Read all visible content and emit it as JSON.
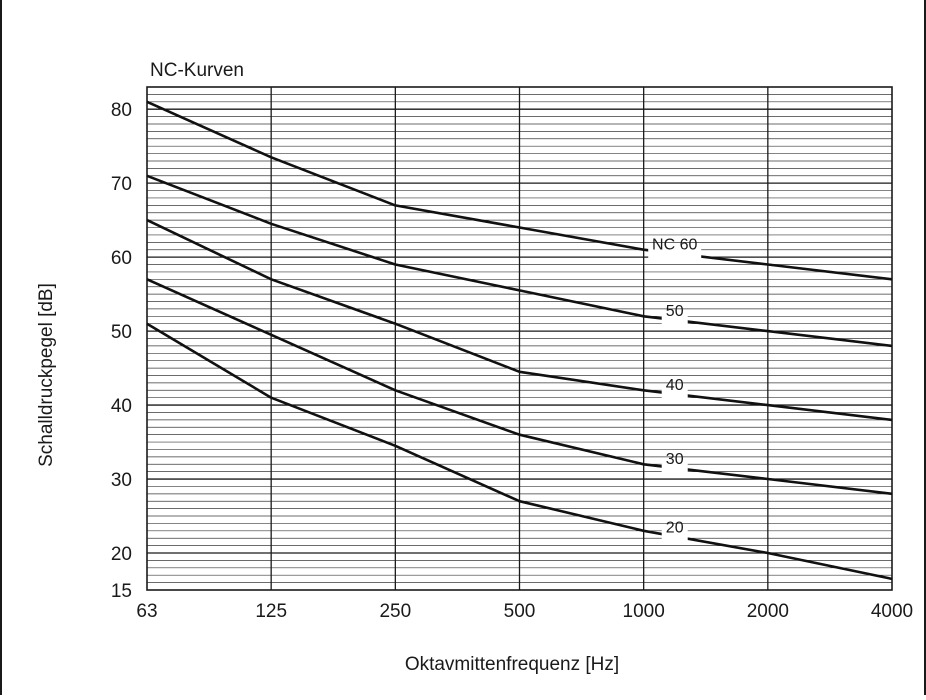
{
  "chart_data": {
    "type": "line",
    "title": "NC-Kurven",
    "xlabel": "Oktavmittenfrequenz [Hz]",
    "ylabel": "Schalldruckpegel [dB]",
    "x_scale": "log",
    "x_ticks": [
      "63",
      "125",
      "250",
      "500",
      "1000",
      "2000",
      "4000"
    ],
    "x": [
      63,
      125,
      250,
      500,
      1000,
      2000,
      4000
    ],
    "y_ticks": [
      "15",
      "20",
      "30",
      "40",
      "50",
      "60",
      "70",
      "80"
    ],
    "ylim": [
      15,
      83
    ],
    "grid": true,
    "series": [
      {
        "name": "NC 60",
        "values": [
          81,
          73.5,
          67,
          64,
          61,
          59,
          57
        ]
      },
      {
        "name": "50",
        "values": [
          71,
          64.5,
          59,
          55.5,
          52,
          50,
          48
        ]
      },
      {
        "name": "40",
        "values": [
          65,
          57,
          51,
          44.5,
          42,
          40,
          38
        ]
      },
      {
        "name": "30",
        "values": [
          57,
          49.5,
          42,
          36,
          32,
          30,
          28
        ]
      },
      {
        "name": "20",
        "values": [
          51,
          41,
          34.5,
          27,
          23,
          20,
          16.5
        ]
      }
    ]
  }
}
